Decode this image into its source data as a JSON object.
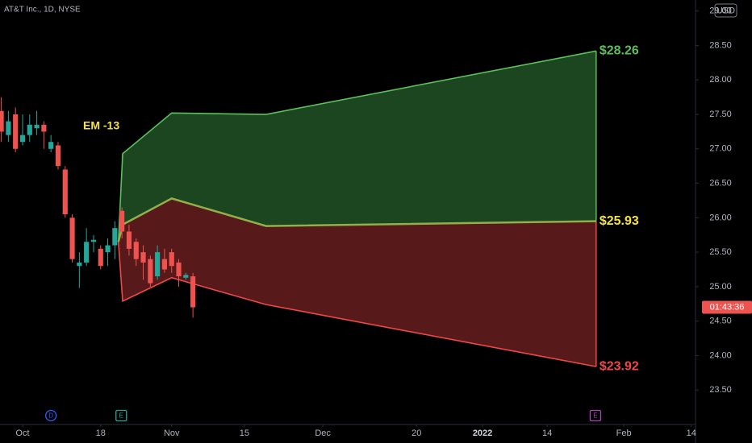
{
  "chart_data": {
    "type": "candlestick",
    "title": "AT&T Inc., 1D, NYSE",
    "currency": "USD",
    "annotation": "EM -13",
    "up_color": "#26a69a",
    "down_color": "#ef5350",
    "x": [
      -3,
      -2,
      -1,
      0,
      1,
      2,
      3,
      4,
      5,
      6,
      7,
      8,
      9,
      10,
      11,
      12,
      13,
      14,
      15,
      16,
      17,
      18,
      19,
      20,
      21,
      22,
      23,
      24
    ],
    "open": [
      27.55,
      27.2,
      27.5,
      27.1,
      27.2,
      27.3,
      27.35,
      27.0,
      27.05,
      26.7,
      26.0,
      25.3,
      25.35,
      25.65,
      25.55,
      25.5,
      25.6,
      26.1,
      25.8,
      25.65,
      25.5,
      25.4,
      25.15,
      25.4,
      25.5,
      25.35,
      25.13,
      25.15
    ],
    "high": [
      27.75,
      27.55,
      27.6,
      27.5,
      27.5,
      27.55,
      27.4,
      27.2,
      27.1,
      26.75,
      26.05,
      25.5,
      25.85,
      25.75,
      25.6,
      25.7,
      25.95,
      26.15,
      25.9,
      25.7,
      25.6,
      25.45,
      25.6,
      25.55,
      25.55,
      25.4,
      25.2,
      25.2
    ],
    "low": [
      27.1,
      27.1,
      26.95,
      27.05,
      27.1,
      27.2,
      27.0,
      26.95,
      26.7,
      26.0,
      25.35,
      24.98,
      25.3,
      25.5,
      25.25,
      25.3,
      25.4,
      25.7,
      25.45,
      25.3,
      25.1,
      25.0,
      25.1,
      25.2,
      25.2,
      25.0,
      25.1,
      24.55
    ],
    "close": [
      27.25,
      27.4,
      27.0,
      27.2,
      27.35,
      27.35,
      27.25,
      27.1,
      26.75,
      26.05,
      25.4,
      25.35,
      25.65,
      25.68,
      25.3,
      25.6,
      25.85,
      25.8,
      25.55,
      25.4,
      25.35,
      25.05,
      25.5,
      25.25,
      25.3,
      25.15,
      25.17,
      24.7
    ],
    "bands": {
      "x": [
        13.5,
        14.1,
        21.0,
        34.3,
        80.8
      ],
      "series": [
        {
          "name": "upper",
          "color": "#5cbf5c",
          "fill": "#1e4a22",
          "values": [
            25.65,
            26.93,
            27.52,
            27.5,
            28.42
          ],
          "label": "$28.26"
        },
        {
          "name": "mid",
          "color": "#8fb04a",
          "values": [
            25.65,
            25.9,
            26.28,
            25.88,
            25.95
          ],
          "label": "$25.93",
          "label_color": "#f5e53a"
        },
        {
          "name": "lower",
          "color": "#f04848",
          "fill": "#5c1a1a",
          "values": [
            25.65,
            24.79,
            25.13,
            24.74,
            23.84
          ],
          "label": "$23.92"
        }
      ]
    },
    "countdown": {
      "label": "01:43:36",
      "value": 24.7
    },
    "events": [
      {
        "label": "D",
        "x": 4,
        "color": "#2962ff"
      },
      {
        "label": "E",
        "x": 13.9,
        "color": "#26a69a"
      },
      {
        "label": "E",
        "x": 80.7,
        "color": "#ab47bc"
      }
    ],
    "xlim": [
      -3.18,
      94.8
    ],
    "xticks": [
      {
        "value": 0,
        "label": "Oct"
      },
      {
        "value": 11,
        "label": "18"
      },
      {
        "value": 21,
        "label": "Nov"
      },
      {
        "value": 31.25,
        "label": "15"
      },
      {
        "value": 42.3,
        "label": "Dec"
      },
      {
        "value": 55.5,
        "label": "20"
      },
      {
        "value": 64.8,
        "label": "2022"
      },
      {
        "value": 73.9,
        "label": "14"
      },
      {
        "value": 84.7,
        "label": "Feb"
      },
      {
        "value": 94.2,
        "label": "14"
      }
    ],
    "ylim": [
      23.0,
      29.16
    ],
    "yticks": [
      {
        "value": 23.5,
        "label": "23.50"
      },
      {
        "value": 24,
        "label": "24.00"
      },
      {
        "value": 24.5,
        "label": "24.50"
      },
      {
        "value": 25,
        "label": "25.00"
      },
      {
        "value": 25.5,
        "label": "25.50"
      },
      {
        "value": 26,
        "label": "26.00"
      },
      {
        "value": 26.5,
        "label": "26.50"
      },
      {
        "value": 27,
        "label": "27.00"
      },
      {
        "value": 27.5,
        "label": "27.50"
      },
      {
        "value": 28,
        "label": "28.00"
      },
      {
        "value": 28.5,
        "label": "28.50"
      },
      {
        "value": 29,
        "label": "29.00"
      }
    ]
  }
}
